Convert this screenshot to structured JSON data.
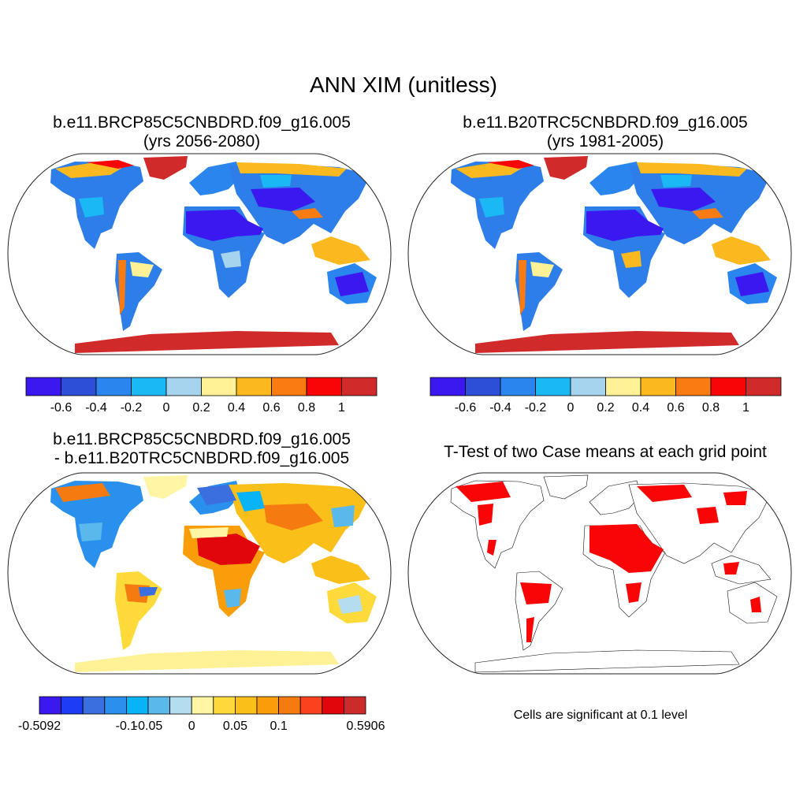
{
  "figure": {
    "title": "ANN XIM (unitless)"
  },
  "panels": [
    {
      "title_line1": "b.e11.BRCP85C5CNBDRD.f09_g16.005",
      "title_line2": "(yrs 2056-2080)"
    },
    {
      "title_line1": "b.e11.B20TRC5CNBDRD.f09_g16.005",
      "title_line2": "(yrs 1981-2005)"
    },
    {
      "title_line1": "b.e11.BRCP85C5CNBDRD.f09_g16.005",
      "title_line2": "- b.e11.B20TRC5CNBDRD.f09_g16.005"
    },
    {
      "title_line1": "T-Test of two Case means at each grid point",
      "note": "Cells are significant at 0.1 level"
    }
  ],
  "colorbars": {
    "case": {
      "colors": [
        "#3b18f0",
        "#2d4fd8",
        "#2a86ee",
        "#1ab8f5",
        "#a6d4ee",
        "#fff296",
        "#fbb91f",
        "#f97b12",
        "#f90505",
        "#d12a2a"
      ],
      "labels": [
        "-0.6",
        "-0.4",
        "-0.2",
        "0",
        "0.2",
        "0.4",
        "0.6",
        "0.8",
        "1"
      ]
    },
    "diff": {
      "colors": [
        "#3b18f0",
        "#1c3df5",
        "#3b6fe0",
        "#2a90ee",
        "#08b4f5",
        "#5ab8ea",
        "#b4ddf0",
        "#fff5a4",
        "#fedb3b",
        "#fbbf1a",
        "#f99d0a",
        "#f57a10",
        "#f9421e",
        "#e0060c",
        "#cc2b2b"
      ],
      "labels": [
        "-0.5092",
        "-0.1",
        "-0.05",
        "0",
        "0.05",
        "0.1",
        "0.5906"
      ]
    }
  },
  "map_colors": {
    "land_blue": "#2d7ee8",
    "land_cyan": "#1ab8f5",
    "desert_purple": "#3b18f0",
    "polar_red": "#d12a2a",
    "diff_yellow": "#fff296",
    "diff_orange": "#f99d0a",
    "diff_red": "#e0060c",
    "significance_red": "#f90505"
  }
}
